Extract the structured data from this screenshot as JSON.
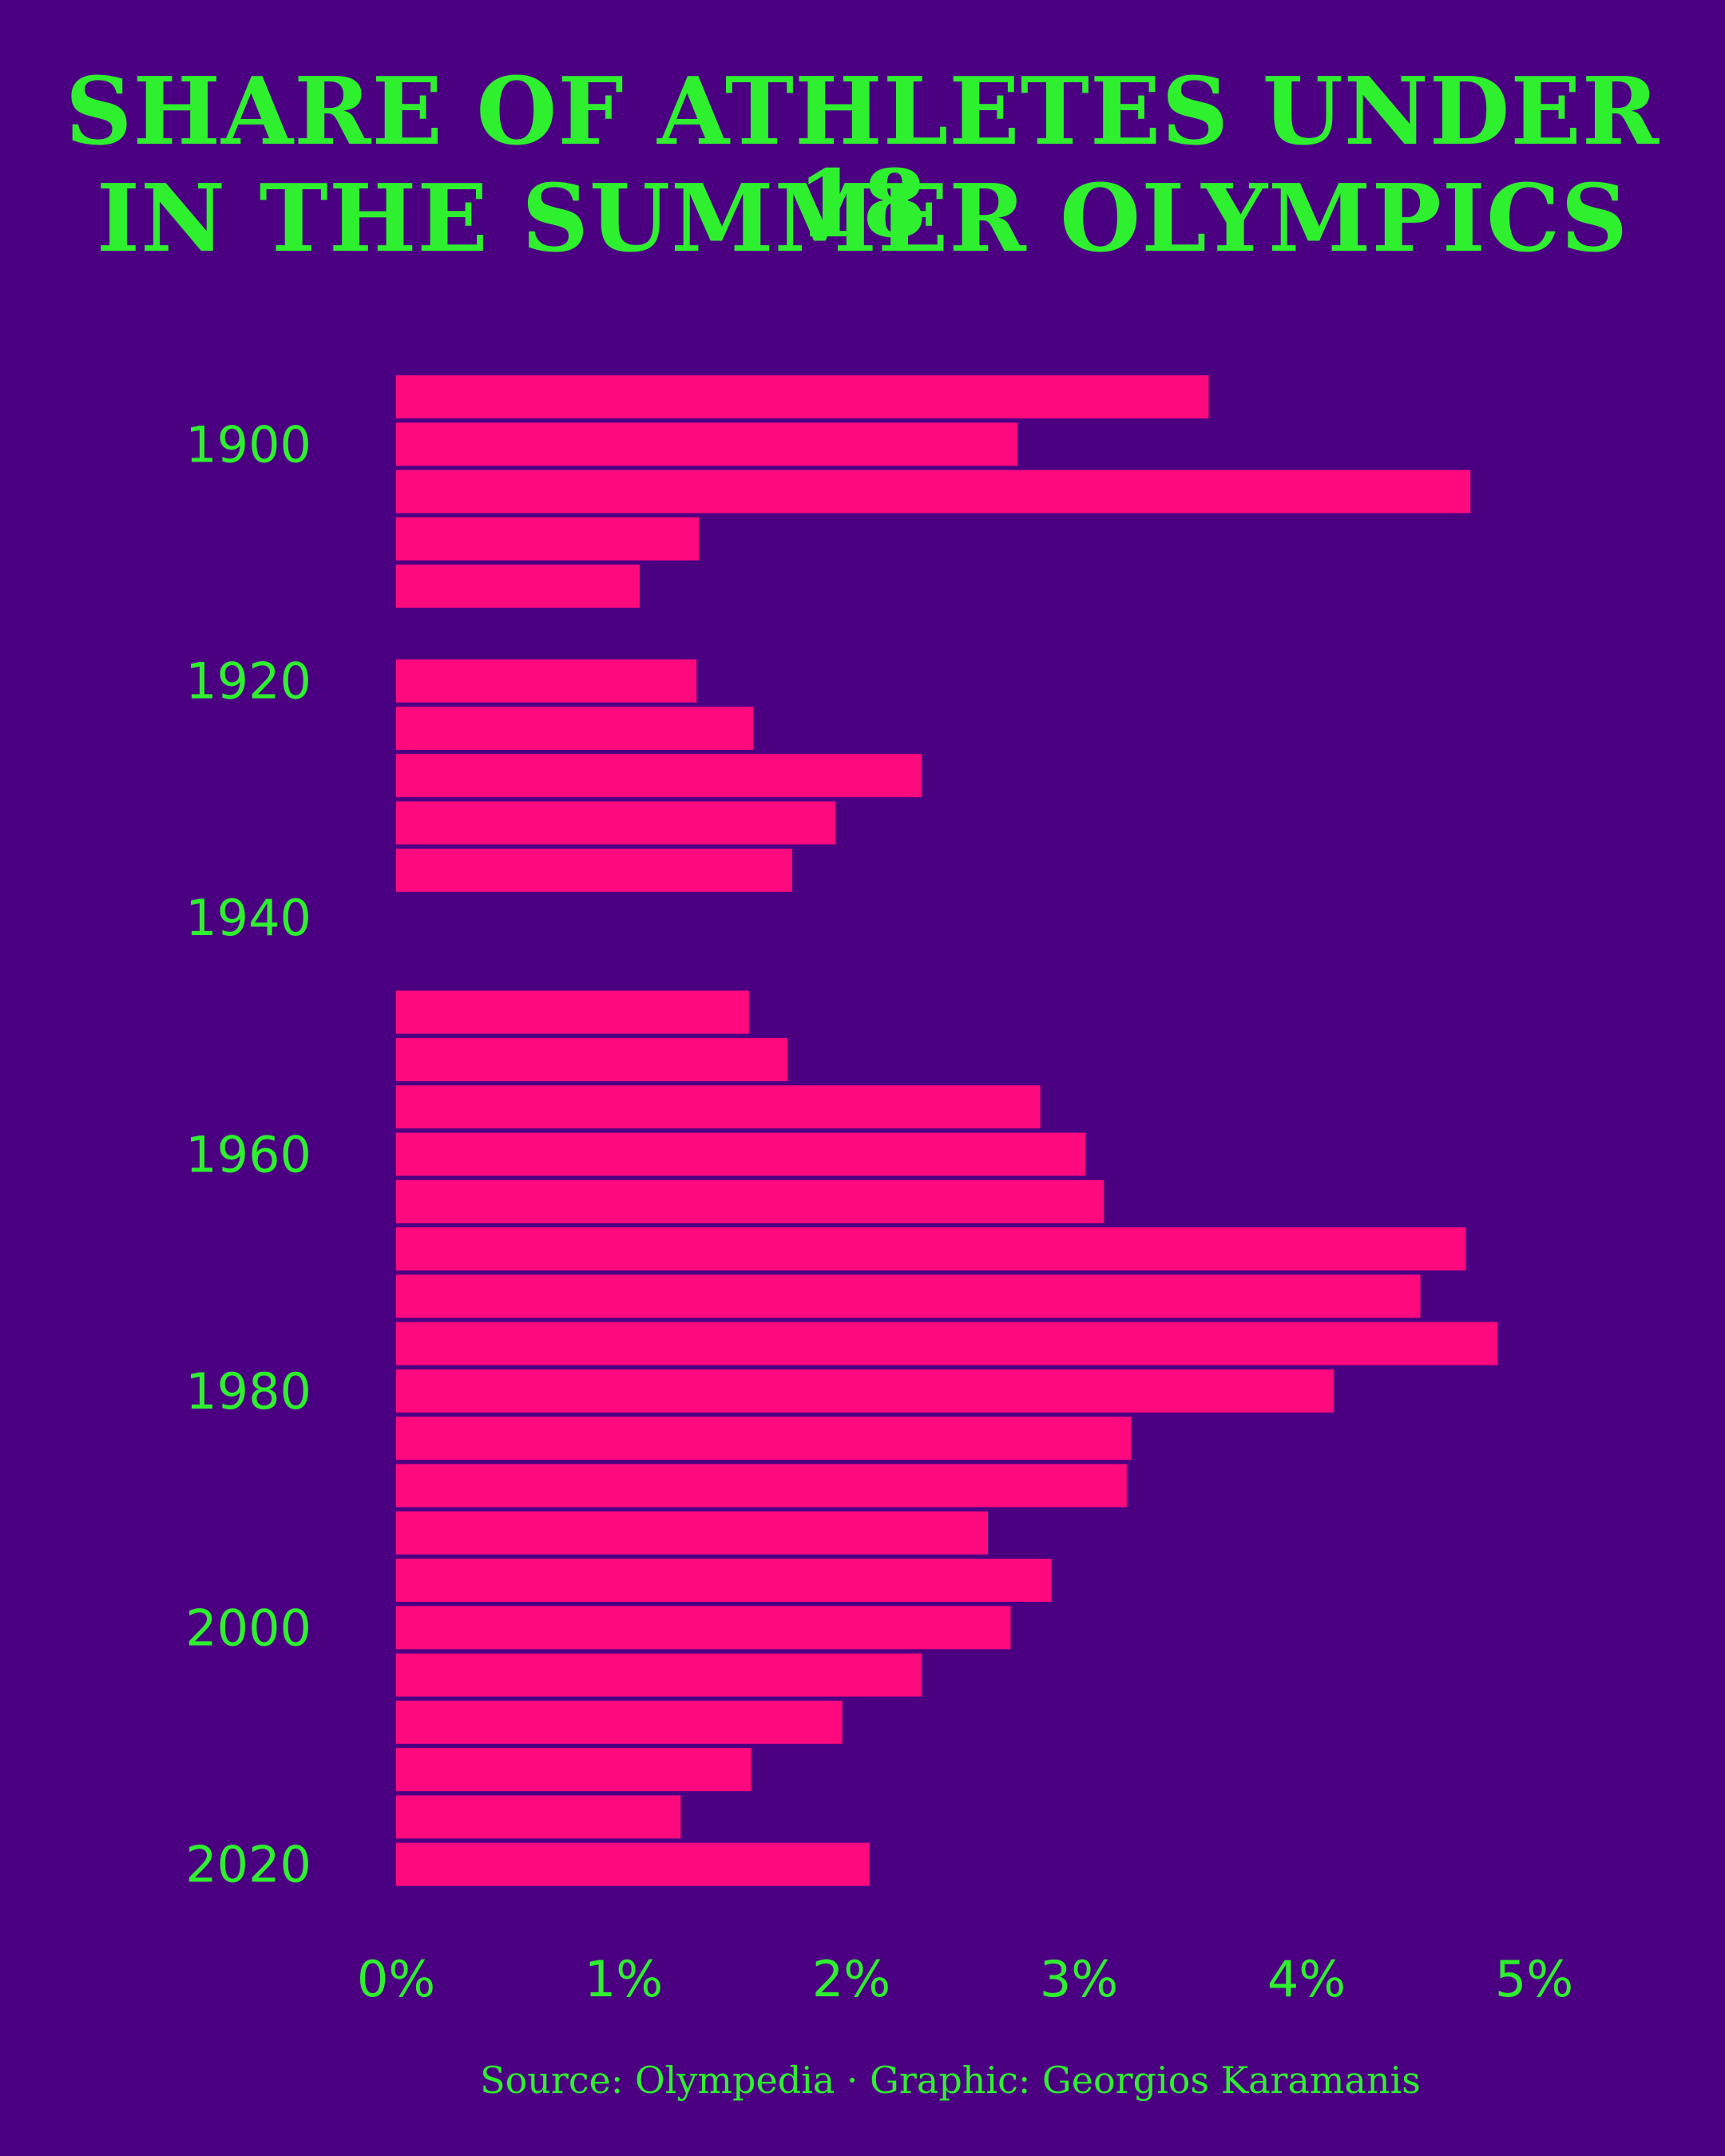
{
  "title_line1": "SHARE OF ATHLETES UNDER 18",
  "title_line2": "IN THE SUMMER OLYMPICS",
  "caption": "Source: Olympedia · Graphic: Georgios Karamanis",
  "colors": {
    "background": "#4b0082",
    "bar": "#ff0a7e",
    "text": "#2ef02e"
  },
  "chart_data": {
    "type": "bar",
    "orientation": "horizontal",
    "title": "SHARE OF ATHLETES UNDER 18 IN THE SUMMER OLYMPICS",
    "xlabel": "",
    "ylabel": "",
    "xlim": [
      0,
      5
    ],
    "xticks": [
      "0%",
      "1%",
      "2%",
      "3%",
      "4%",
      "5%"
    ],
    "yticks": [
      "1900",
      "1920",
      "1940",
      "1960",
      "1980",
      "2000",
      "2020"
    ],
    "grid": false,
    "legend": "none",
    "series": [
      {
        "years": [
          1896,
          1900,
          1904,
          1908,
          1912,
          1920,
          1924,
          1928,
          1932,
          1936,
          1948,
          1952,
          1956,
          1960,
          1964,
          1968,
          1972,
          1976,
          1980,
          1984,
          1988,
          1992,
          1996,
          2000,
          2004,
          2008,
          2012,
          2016,
          2020
        ],
        "values": [
          3.57,
          2.73,
          4.72,
          1.33,
          1.07,
          1.32,
          1.57,
          2.31,
          1.93,
          1.74,
          1.55,
          1.72,
          2.83,
          3.03,
          3.11,
          4.7,
          4.5,
          4.84,
          4.12,
          3.23,
          3.21,
          2.6,
          2.88,
          2.7,
          2.31,
          1.96,
          1.56,
          1.25,
          2.08
        ]
      }
    ]
  }
}
